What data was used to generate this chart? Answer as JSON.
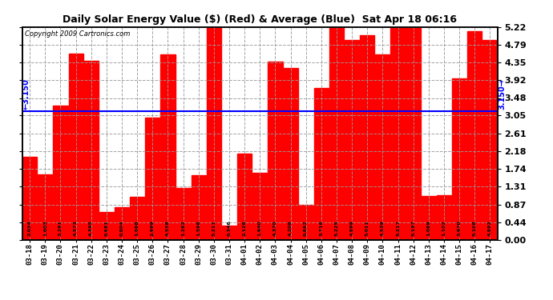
{
  "title": "Daily Solar Energy Value ($) (Red) & Average (Blue)  Sat Apr 18 06:16",
  "copyright": "Copyright 2009 Cartronics.com",
  "average": 3.15,
  "bar_color": "#ff0000",
  "average_color": "#0000ff",
  "background_color": "#ffffff",
  "grid_color": "#999999",
  "ylim": [
    0,
    5.22
  ],
  "yticks": [
    0.0,
    0.44,
    0.87,
    1.31,
    1.74,
    2.18,
    2.61,
    3.05,
    3.48,
    3.92,
    4.35,
    4.79,
    5.22
  ],
  "categories": [
    "03-18",
    "03-19",
    "03-20",
    "03-21",
    "03-22",
    "03-23",
    "03-24",
    "03-25",
    "03-26",
    "03-27",
    "03-28",
    "03-29",
    "03-30",
    "03-31",
    "04-01",
    "04-02",
    "04-03",
    "04-04",
    "04-05",
    "04-06",
    "04-07",
    "04-08",
    "04-09",
    "04-10",
    "04-11",
    "04-12",
    "04-13",
    "04-14",
    "04-15",
    "04-16",
    "04-17"
  ],
  "values": [
    2.034,
    1.603,
    3.291,
    4.573,
    4.395,
    0.681,
    0.804,
    1.068,
    2.999,
    4.558,
    1.282,
    1.596,
    5.211,
    0.346,
    2.126,
    1.64,
    4.37,
    4.208,
    0.862,
    3.716,
    5.225,
    4.899,
    5.011,
    4.539,
    5.217,
    5.197,
    1.069,
    1.102,
    3.97,
    5.108,
    4.892
  ]
}
